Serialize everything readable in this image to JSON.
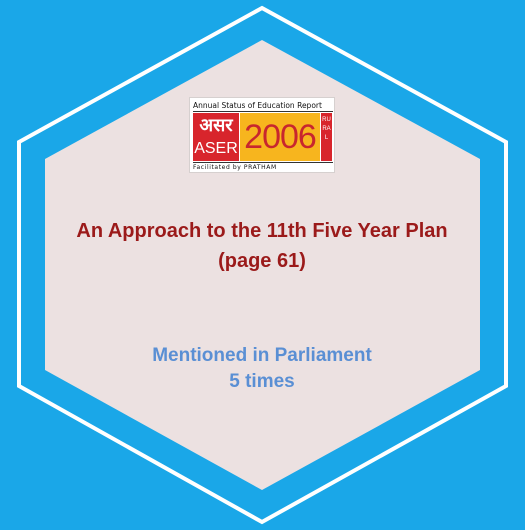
{
  "logo": {
    "top_line": "Annual Status of Education Report",
    "hindi": "असर",
    "aser": "ASER",
    "year": "2006",
    "rural": "RURAL",
    "bottom_line": "Facilitated by PRATHAM"
  },
  "headline": "An Approach to the 11th Five Year Plan (page 61)",
  "mention": {
    "line1": "Mentioned in Parliament",
    "line2": "5 times"
  },
  "colors": {
    "background": "#1aa7e8",
    "hex_fill": "#ece1e1",
    "hex_outline": "#ffffff",
    "headline": "#9b1a1a",
    "mention": "#5a8fd4"
  }
}
